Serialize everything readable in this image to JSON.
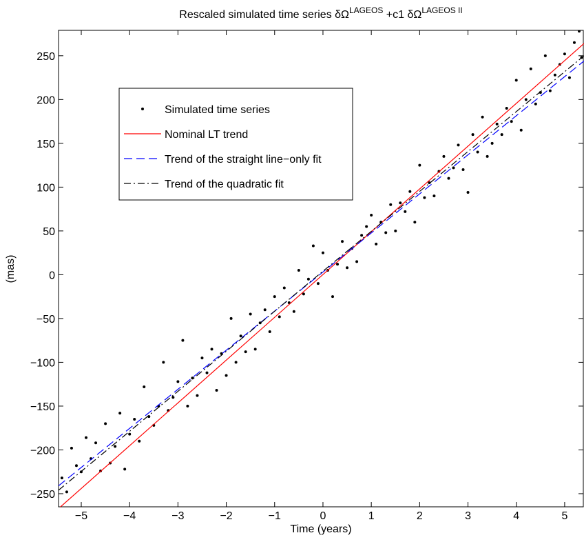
{
  "chart_data": {
    "type": "scatter-lines",
    "title_parts": [
      "Rescaled simulated time series δΩ",
      "LAGEOS",
      " +c1 δΩ",
      "LAGEOS II"
    ],
    "xlabel": "Time (years)",
    "ylabel": "(mas)",
    "xlim": [
      -5.47,
      5.4
    ],
    "ylim": [
      -265,
      279
    ],
    "xticks": [
      {
        "value": -5,
        "label": "−5"
      },
      {
        "value": -4,
        "label": "−4"
      },
      {
        "value": -3,
        "label": "−3"
      },
      {
        "value": -2,
        "label": "−2"
      },
      {
        "value": -1,
        "label": "−1"
      },
      0,
      1,
      2,
      3,
      4,
      5
    ],
    "yticks": [
      {
        "value": -250,
        "label": "−250"
      },
      {
        "value": -200,
        "label": "−200"
      },
      {
        "value": -150,
        "label": "−150"
      },
      {
        "value": -100,
        "label": "−100"
      },
      {
        "value": -50,
        "label": "−50"
      },
      0,
      50,
      100,
      150,
      200,
      250
    ],
    "series": [
      {
        "name": "Simulated time series",
        "color": "#000000",
        "style": "dots",
        "x": [
          -5.4,
          -5.3,
          -5.2,
          -5.1,
          -5.0,
          -4.9,
          -4.8,
          -4.7,
          -4.6,
          -4.5,
          -4.4,
          -4.3,
          -4.2,
          -4.1,
          -4.0,
          -3.9,
          -3.8,
          -3.7,
          -3.6,
          -3.5,
          -3.4,
          -3.3,
          -3.2,
          -3.1,
          -3.0,
          -2.9,
          -2.8,
          -2.7,
          -2.6,
          -2.5,
          -2.4,
          -2.3,
          -2.2,
          -2.1,
          -2.0,
          -1.9,
          -1.8,
          -1.7,
          -1.6,
          -1.5,
          -1.4,
          -1.3,
          -1.2,
          -1.1,
          -1.0,
          -0.9,
          -0.8,
          -0.7,
          -0.6,
          -0.5,
          -0.4,
          -0.3,
          -0.2,
          -0.1,
          0.0,
          0.1,
          0.2,
          0.3,
          0.4,
          0.5,
          0.6,
          0.7,
          0.8,
          0.9,
          1.0,
          1.1,
          1.2,
          1.3,
          1.4,
          1.5,
          1.6,
          1.7,
          1.8,
          1.9,
          2.0,
          2.1,
          2.2,
          2.3,
          2.4,
          2.5,
          2.6,
          2.7,
          2.8,
          2.9,
          3.0,
          3.1,
          3.2,
          3.3,
          3.4,
          3.5,
          3.6,
          3.7,
          3.8,
          3.9,
          4.0,
          4.1,
          4.2,
          4.3,
          4.4,
          4.5,
          4.6,
          4.7,
          4.8,
          4.9,
          5.0,
          5.1,
          5.2,
          5.3,
          5.35
        ],
        "values": [
          -232,
          -248,
          -198,
          -218,
          -225,
          -186,
          -210,
          -192,
          -224,
          -170,
          -215,
          -196,
          -158,
          -222,
          -182,
          -165,
          -190,
          -128,
          -162,
          -172,
          -150,
          -100,
          -155,
          -140,
          -122,
          -75,
          -150,
          -118,
          -138,
          -95,
          -112,
          -85,
          -132,
          -90,
          -115,
          -50,
          -100,
          -70,
          -88,
          -45,
          -85,
          -55,
          -40,
          -65,
          -25,
          -48,
          -15,
          -32,
          -42,
          5,
          -22,
          -5,
          33,
          -10,
          25,
          5,
          -25,
          12,
          38,
          8,
          30,
          15,
          45,
          55,
          68,
          35,
          60,
          48,
          80,
          50,
          82,
          72,
          95,
          60,
          125,
          88,
          105,
          90,
          118,
          135,
          110,
          122,
          148,
          120,
          94,
          160,
          140,
          180,
          135,
          150,
          172,
          160,
          190,
          175,
          222,
          165,
          200,
          235,
          195,
          208,
          250,
          210,
          228,
          240,
          252,
          225,
          265,
          278,
          248
        ]
      },
      {
        "name": "Nominal LT trend",
        "color": "#ff0000",
        "style": "solid",
        "x": [
          -5.47,
          5.4
        ],
        "values": [
          -267,
          264
        ]
      },
      {
        "name": "Trend of the straight line−only fit",
        "color": "#0000ff",
        "style": "dashed",
        "x": [
          -5.47,
          5.4
        ],
        "values": [
          -241,
          244
        ]
      },
      {
        "name": "Trend of the quadratic fit",
        "color": "#000000",
        "style": "dashdot",
        "x": [
          -5.47,
          0,
          5.4
        ],
        "values": [
          -246,
          4,
          250
        ]
      }
    ]
  }
}
